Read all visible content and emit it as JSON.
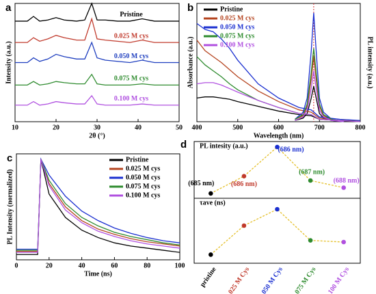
{
  "chart_data": [
    {
      "type": "line",
      "panel": "a",
      "xlabel": "2θ (°)",
      "ylabel": "Intensity (a.u.)",
      "xlim": [
        10,
        50
      ],
      "xticks": [
        10,
        20,
        30,
        40,
        50
      ],
      "ylim": [
        0,
        1
      ],
      "legend": "inline",
      "x": [
        10,
        13,
        14.5,
        16,
        18,
        20,
        22,
        25,
        27,
        28.7,
        30,
        32,
        35,
        38,
        41,
        44,
        47,
        50
      ],
      "series": [
        {
          "name": "Pristine",
          "color": "#000000",
          "values": [
            0.85,
            0.85,
            0.89,
            0.85,
            0.86,
            0.88,
            0.86,
            0.85,
            0.86,
            1.0,
            0.86,
            0.86,
            0.85,
            0.85,
            0.87,
            0.85,
            0.85,
            0.85
          ]
        },
        {
          "name": "0.025 M cys",
          "color": "#c0392b",
          "values": [
            0.67,
            0.67,
            0.71,
            0.68,
            0.7,
            0.73,
            0.71,
            0.69,
            0.69,
            0.87,
            0.7,
            0.69,
            0.68,
            0.67,
            0.69,
            0.67,
            0.67,
            0.67
          ]
        },
        {
          "name": "0.050 M cys",
          "color": "#1f3fbf",
          "values": [
            0.5,
            0.5,
            0.54,
            0.51,
            0.53,
            0.57,
            0.55,
            0.53,
            0.53,
            0.67,
            0.54,
            0.52,
            0.51,
            0.5,
            0.52,
            0.5,
            0.5,
            0.5
          ]
        },
        {
          "name": "0.075 M cys",
          "color": "#2e8b2e",
          "values": [
            0.31,
            0.31,
            0.34,
            0.31,
            0.32,
            0.34,
            0.33,
            0.32,
            0.32,
            0.4,
            0.32,
            0.31,
            0.31,
            0.31,
            0.32,
            0.31,
            0.31,
            0.31
          ]
        },
        {
          "name": "0.100 M cys",
          "color": "#b050e0",
          "values": [
            0.14,
            0.14,
            0.17,
            0.14,
            0.15,
            0.17,
            0.16,
            0.15,
            0.15,
            0.22,
            0.15,
            0.14,
            0.14,
            0.14,
            0.15,
            0.14,
            0.14,
            0.14
          ]
        }
      ]
    },
    {
      "type": "line",
      "panel": "b",
      "xlabel": "Wavelength (nm)",
      "ylabel": "Absorbance (a.u.)",
      "y2label": "PL intensity (a.u.)",
      "xlim": [
        400,
        800
      ],
      "xticks": [
        400,
        500,
        600,
        700,
        800
      ],
      "ylim": [
        0,
        1
      ],
      "y2lim": [
        0,
        1
      ],
      "legend": "upper left",
      "marker_x": 686,
      "x": [
        400,
        420,
        440,
        460,
        480,
        500,
        550,
        600,
        650,
        680,
        700,
        750,
        800
      ],
      "pl_x": [
        640,
        660,
        670,
        680,
        686,
        692,
        700,
        710,
        730,
        760
      ],
      "series": [
        {
          "name": "Pristine",
          "color": "#000000",
          "values": [
            0.2,
            0.21,
            0.21,
            0.2,
            0.19,
            0.17,
            0.13,
            0.09,
            0.06,
            0.05,
            0.02,
            0.01,
            0.0
          ],
          "pl_values": [
            0.01,
            0.03,
            0.07,
            0.2,
            0.3,
            0.2,
            0.07,
            0.03,
            0.01,
            0
          ]
        },
        {
          "name": "0.025 M cys",
          "color": "#b5441f",
          "values": [
            0.69,
            0.6,
            0.55,
            0.5,
            0.44,
            0.38,
            0.26,
            0.17,
            0.1,
            0.08,
            0.03,
            0.01,
            0.01
          ],
          "pl_values": [
            0.02,
            0.05,
            0.13,
            0.36,
            0.55,
            0.36,
            0.13,
            0.05,
            0.02,
            0
          ]
        },
        {
          "name": "0.050 M cys",
          "color": "#1a2fd0",
          "values": [
            0.83,
            0.78,
            0.76,
            0.7,
            0.62,
            0.52,
            0.32,
            0.2,
            0.12,
            0.1,
            0.04,
            0.02,
            0.01
          ],
          "pl_values": [
            0.02,
            0.08,
            0.2,
            0.6,
            0.92,
            0.6,
            0.2,
            0.08,
            0.02,
            0
          ]
        },
        {
          "name": "0.075 M cys",
          "color": "#2e8b2e",
          "values": [
            0.55,
            0.48,
            0.43,
            0.38,
            0.32,
            0.27,
            0.18,
            0.12,
            0.07,
            0.06,
            0.02,
            0.01,
            0.0
          ],
          "pl_values": [
            0.02,
            0.06,
            0.15,
            0.42,
            0.62,
            0.42,
            0.15,
            0.06,
            0.02,
            0
          ]
        },
        {
          "name": "0.100 M cys",
          "color": "#b050e0",
          "values": [
            0.32,
            0.33,
            0.33,
            0.31,
            0.28,
            0.25,
            0.18,
            0.12,
            0.07,
            0.06,
            0.02,
            0.01,
            0.0
          ],
          "pl_values": [
            0.01,
            0.04,
            0.1,
            0.28,
            0.43,
            0.28,
            0.1,
            0.04,
            0.01,
            0
          ]
        }
      ]
    },
    {
      "type": "line",
      "panel": "c",
      "xlabel": "Time (ns)",
      "ylabel": "PL Intensity (normalized)",
      "xlim": [
        0,
        100
      ],
      "xticks": [
        0,
        20,
        40,
        60,
        80,
        100
      ],
      "ylim": [
        0,
        1
      ],
      "legend": "upper right",
      "x": [
        0,
        12,
        13,
        14,
        15,
        20,
        30,
        40,
        50,
        60,
        70,
        80,
        90,
        100
      ],
      "series": [
        {
          "name": "Pristine",
          "color": "#000000",
          "values": [
            0.05,
            0.05,
            0.05,
            0.5,
            0.95,
            0.62,
            0.4,
            0.28,
            0.21,
            0.16,
            0.13,
            0.11,
            0.09,
            0.07
          ]
        },
        {
          "name": "0.025 M cys",
          "color": "#b5441f",
          "values": [
            0.08,
            0.08,
            0.08,
            0.5,
            0.95,
            0.72,
            0.5,
            0.37,
            0.29,
            0.24,
            0.2,
            0.17,
            0.15,
            0.13
          ]
        },
        {
          "name": "0.050 M cys",
          "color": "#1a2fd0",
          "values": [
            0.1,
            0.1,
            0.1,
            0.5,
            0.95,
            0.8,
            0.6,
            0.46,
            0.37,
            0.3,
            0.25,
            0.21,
            0.18,
            0.16
          ]
        },
        {
          "name": "0.075 M cys",
          "color": "#2e8b2e",
          "values": [
            0.09,
            0.09,
            0.09,
            0.5,
            0.95,
            0.75,
            0.53,
            0.4,
            0.32,
            0.26,
            0.22,
            0.19,
            0.16,
            0.14
          ]
        },
        {
          "name": "0.100 M cys",
          "color": "#b050e0",
          "values": [
            0.07,
            0.07,
            0.07,
            0.5,
            0.95,
            0.7,
            0.47,
            0.35,
            0.27,
            0.22,
            0.18,
            0.15,
            0.13,
            0.11
          ]
        }
      ]
    },
    {
      "type": "scatter",
      "panel": "d",
      "ylim": [
        0,
        1
      ],
      "categories": [
        "pristine",
        "0.025 M Cys",
        "0.050 M Cys",
        "0.075 M Cys",
        "0.100 M Cys"
      ],
      "colors": [
        "#000000",
        "#c0392b",
        "#1a2fd0",
        "#2e8b2e",
        "#b050e0"
      ],
      "line_color": "#e5c02a",
      "series": [
        {
          "name": "PL intesity (a.u.)",
          "values": [
            0.03,
            0.39,
            1.0,
            0.3,
            0.15
          ],
          "annotations": [
            "(685 nm)",
            "(686 nm)",
            "(686 nm)",
            "(687 nm)",
            "(688 nm)"
          ]
        },
        {
          "name": "τave (ns)",
          "values": [
            0.07,
            0.6,
            0.9,
            0.33,
            0.3
          ]
        }
      ]
    }
  ]
}
